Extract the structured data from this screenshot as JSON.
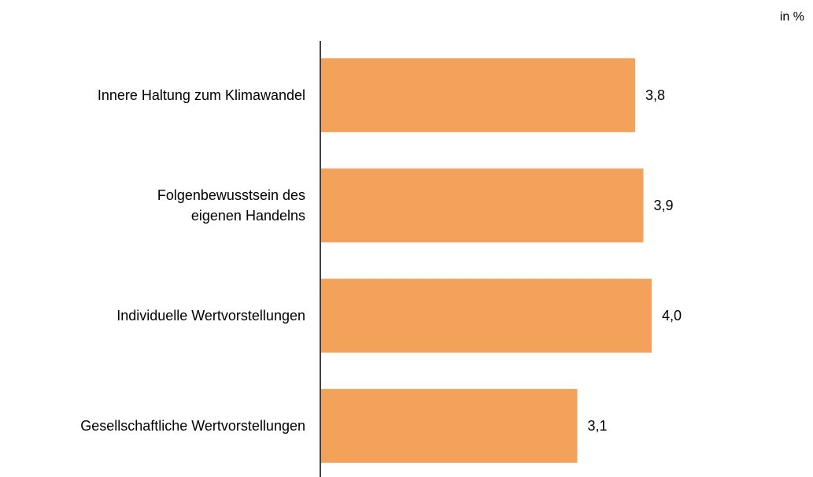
{
  "chart_data": {
    "type": "bar",
    "orientation": "horizontal",
    "unit": "in %",
    "categories": [
      "Innere Haltung zum Klimawandel",
      "Folgenbewusstsein des\neigenen Handelns",
      "Individuelle Wertvorstellungen",
      "Gesellschaftliche Wertvorstellungen"
    ],
    "values": [
      3.8,
      3.9,
      4.0,
      3.1
    ],
    "value_labels": [
      "3,8",
      "3,9",
      "4,0",
      "3,1"
    ],
    "color": "#f4a259",
    "xlim": [
      0,
      5.8
    ]
  }
}
